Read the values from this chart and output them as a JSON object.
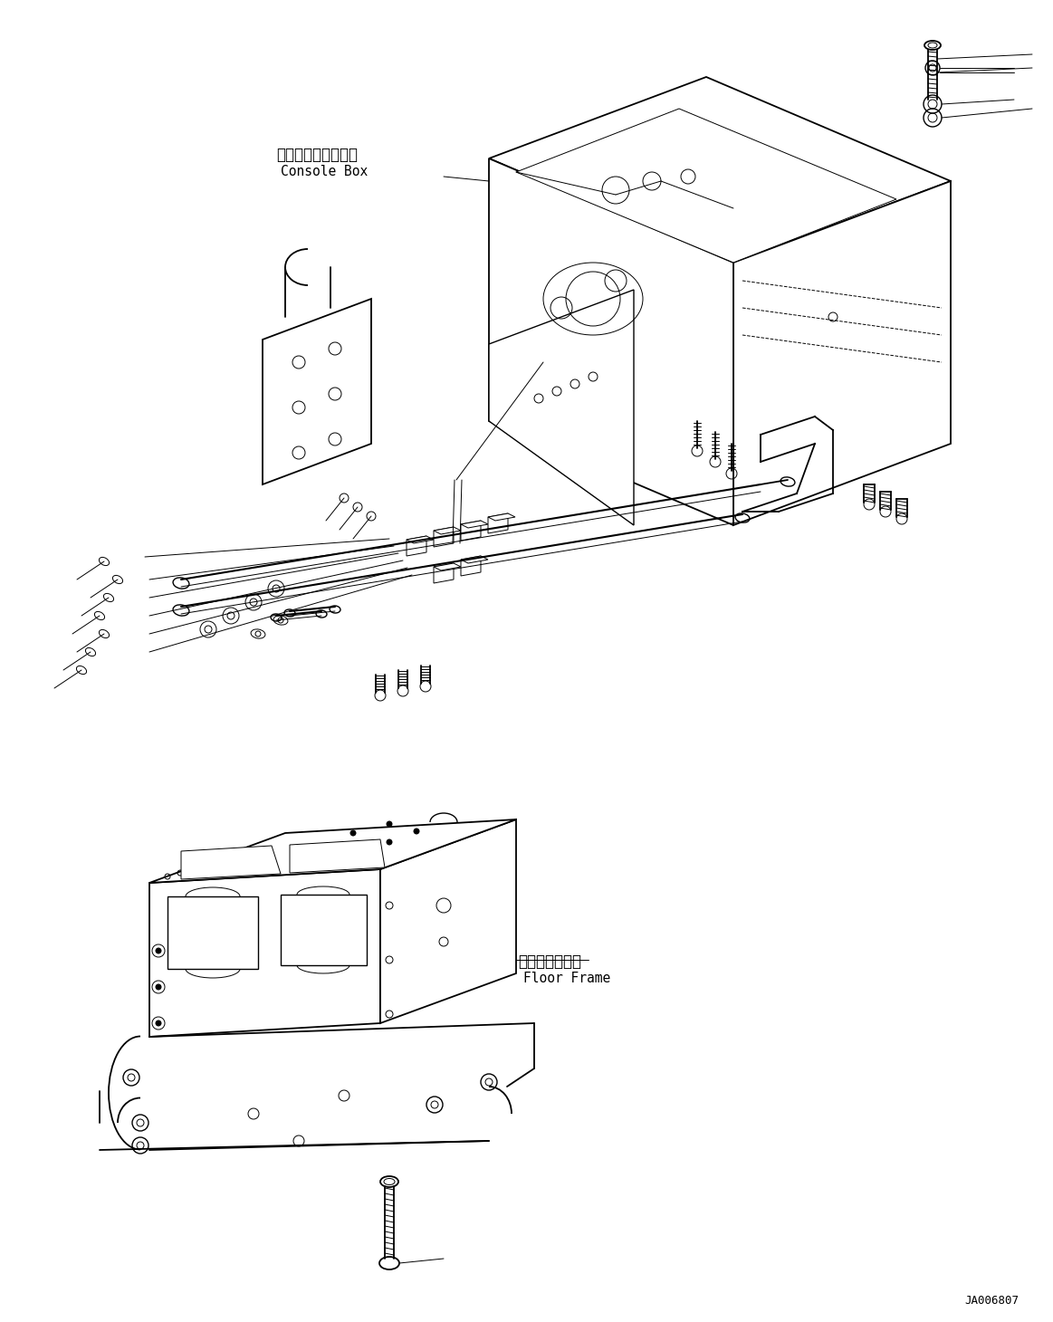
{
  "background_color": "#ffffff",
  "line_color": "#000000",
  "text_color": "#000000",
  "fig_width": 11.63,
  "fig_height": 14.6,
  "dpi": 100,
  "label_console_jp": "コンソールボックス",
  "label_console_en": "Console Box",
  "label_floor_jp": "フロアフレーム",
  "label_floor_en": "Floor Frame",
  "part_number": "JA006807"
}
